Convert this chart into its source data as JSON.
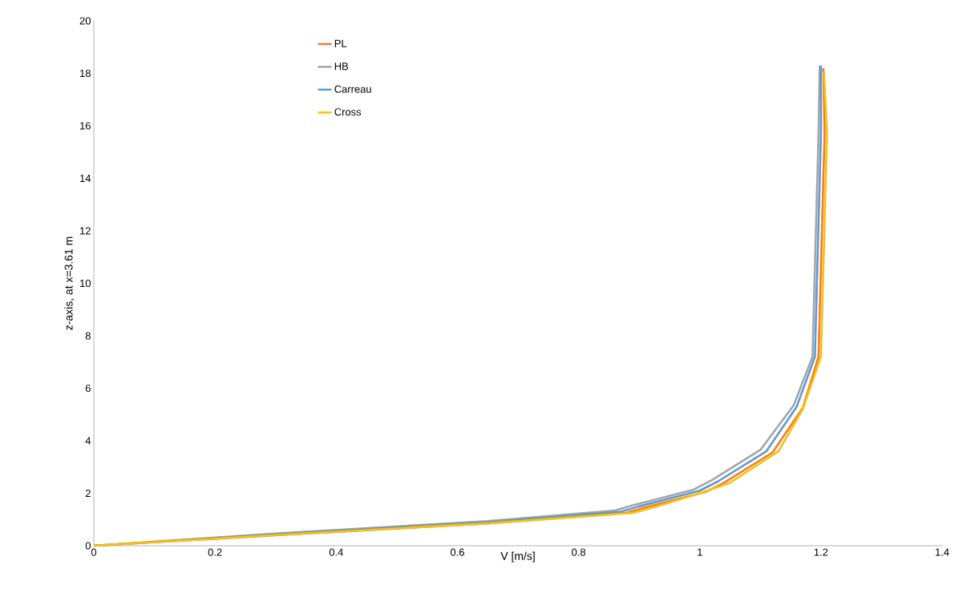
{
  "chart_data": {
    "type": "line",
    "xlabel": "V [m/s]",
    "ylabel": "z-axis, at x=3.61 m",
    "xlim": [
      0,
      1.4
    ],
    "ylim": [
      0,
      20
    ],
    "xticks": [
      0,
      0.2,
      0.4,
      0.6,
      0.8,
      1,
      1.2,
      1.4
    ],
    "yticks": [
      0,
      2,
      4,
      6,
      8,
      10,
      12,
      14,
      16,
      18,
      20
    ],
    "grid": false,
    "legend": "top left",
    "marker": "none",
    "line_style": "solid",
    "series": [
      {
        "name": "PL",
        "color": "#ed7d31",
        "x": [
          0,
          0.31,
          0.65,
          0.88,
          0.91,
          1.01,
          1.04,
          1.12,
          1.17,
          1.196,
          1.206,
          1.204
        ],
        "values": [
          0,
          0.41,
          0.85,
          1.26,
          1.46,
          2.05,
          2.4,
          3.55,
          5.25,
          7.2,
          15.7,
          18.2
        ]
      },
      {
        "name": "HB",
        "color": "#a5a5a5",
        "x": [
          0,
          0.31,
          0.65,
          0.86,
          0.89,
          0.99,
          1.02,
          1.1,
          1.155,
          1.186,
          1.196,
          1.198
        ],
        "values": [
          0,
          0.48,
          0.94,
          1.34,
          1.54,
          2.14,
          2.5,
          3.65,
          5.35,
          7.2,
          15.7,
          18.3
        ]
      },
      {
        "name": "Carreau",
        "color": "#5b9bd5",
        "x": [
          0,
          0.31,
          0.65,
          0.87,
          0.9,
          1.0,
          1.03,
          1.11,
          1.16,
          1.19,
          1.2,
          1.2
        ],
        "values": [
          0,
          0.45,
          0.9,
          1.3,
          1.5,
          2.1,
          2.45,
          3.6,
          5.3,
          7.2,
          15.7,
          18.3
        ]
      },
      {
        "name": "Cross",
        "color": "#ffc000",
        "x": [
          0,
          0.31,
          0.65,
          0.89,
          0.93,
          1.0,
          1.05,
          1.13,
          1.17,
          1.2,
          1.21,
          1.205
        ],
        "values": [
          0,
          0.42,
          0.85,
          1.25,
          1.5,
          2.0,
          2.4,
          3.6,
          5.2,
          7.2,
          15.7,
          18.05
        ]
      }
    ]
  }
}
